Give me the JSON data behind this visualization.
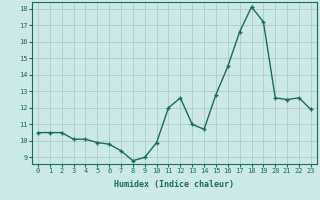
{
  "xlabel": "Humidex (Indice chaleur)",
  "x": [
    0,
    1,
    2,
    3,
    4,
    5,
    6,
    7,
    8,
    9,
    10,
    11,
    12,
    13,
    14,
    15,
    16,
    17,
    18,
    19,
    20,
    21,
    22,
    23
  ],
  "y": [
    10.5,
    10.5,
    10.5,
    10.1,
    10.1,
    9.9,
    9.8,
    9.4,
    8.8,
    9.0,
    9.9,
    12.0,
    12.6,
    11.0,
    10.7,
    12.8,
    14.5,
    16.6,
    18.1,
    17.2,
    12.6,
    12.5,
    12.6,
    11.9
  ],
  "line_color": "#1a6b5a",
  "marker": "+",
  "marker_size": 3.5,
  "bg_color": "#cce8e8",
  "grid_color": "#aacccc",
  "ylim": [
    9,
    18
  ],
  "yticks": [
    9,
    10,
    11,
    12,
    13,
    14,
    15,
    16,
    17,
    18
  ],
  "xlim": [
    -0.5,
    23.5
  ],
  "line_width": 1.0,
  "tick_fontsize": 5.0,
  "xlabel_fontsize": 6.0
}
